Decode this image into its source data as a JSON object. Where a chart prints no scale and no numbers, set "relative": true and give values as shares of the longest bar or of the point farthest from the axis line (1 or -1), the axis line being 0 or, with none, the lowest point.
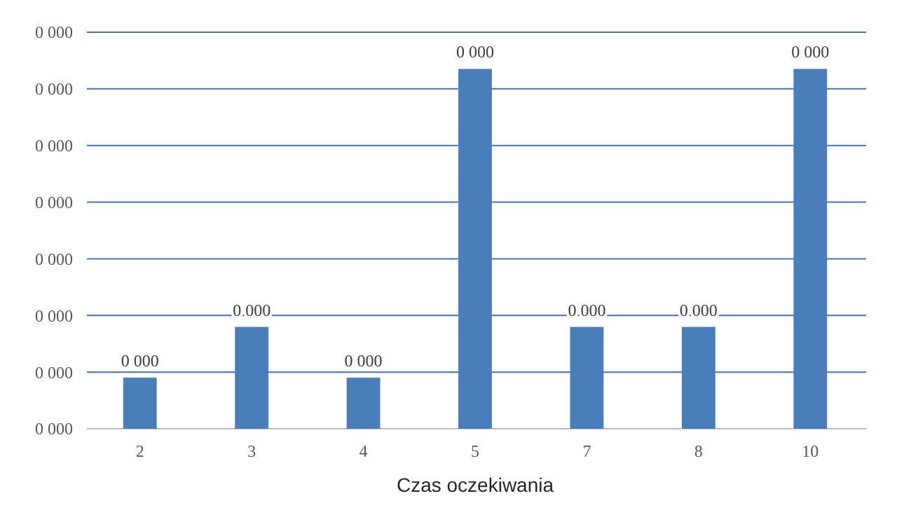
{
  "chart_data": {
    "type": "bar",
    "xlabel": "Czas oczekiwania",
    "categories": [
      "2",
      "3",
      "4",
      "5",
      "7",
      "8",
      "10"
    ],
    "values": [
      0.142,
      0.283,
      0.142,
      1,
      0.283,
      0.283,
      1
    ],
    "relative": true,
    "color": "#4a7ebb",
    "ref_lines": [
      {
        "axis": "y",
        "value": 0.157,
        "color": "#4472c4"
      },
      {
        "axis": "y",
        "value": 0.315,
        "color": "#4472c4"
      },
      {
        "axis": "y",
        "value": 0.472,
        "color": "#4472c4"
      },
      {
        "axis": "y",
        "value": 0.63,
        "color": "#4472c4"
      },
      {
        "axis": "y",
        "value": 0.787,
        "color": "#4472c4"
      },
      {
        "axis": "y",
        "value": 0.945,
        "color": "#4472c4"
      },
      {
        "axis": "y",
        "value": 1.102,
        "color": "#4472c4"
      }
    ],
    "annotations": [
      {
        "text": "0 000",
        "x": "2",
        "y": 0.142
      },
      {
        "text": "0 000",
        "x": "3",
        "y": 0.283
      },
      {
        "text": "0 000",
        "x": "4",
        "y": 0.142
      },
      {
        "text": "0 000",
        "x": "5",
        "y": 1
      },
      {
        "text": "0 000",
        "x": "7",
        "y": 0.283
      },
      {
        "text": "0 000",
        "x": "8",
        "y": 0.283
      },
      {
        "text": "0 000",
        "x": "10",
        "y": 1
      },
      "0 000",
      "0 000",
      "0 000",
      "0 000",
      "0 000",
      "0 000",
      "0 000",
      "0 000"
    ]
  }
}
